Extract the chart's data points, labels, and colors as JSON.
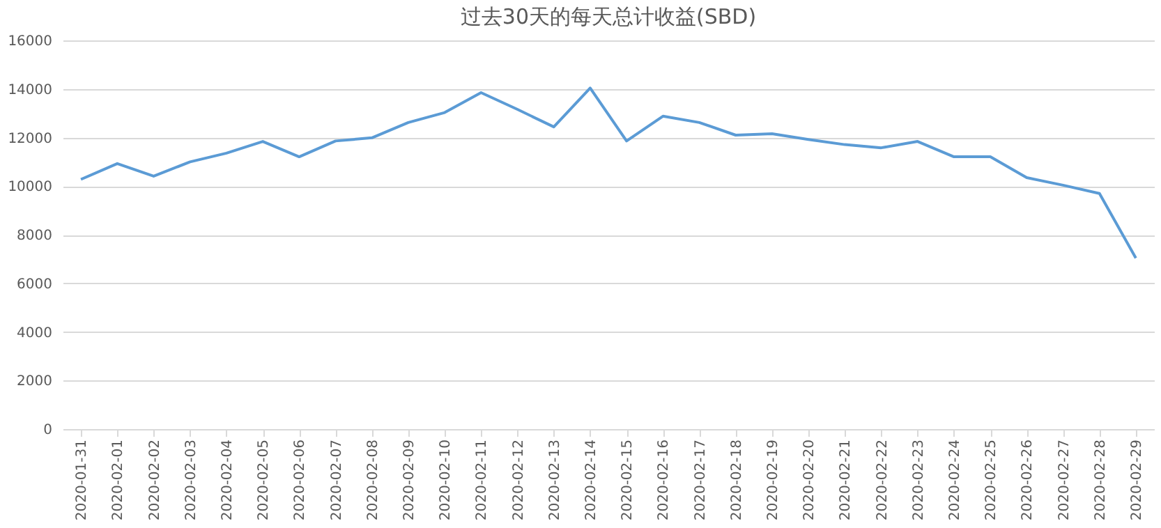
{
  "chart_data": {
    "type": "line",
    "title": "过去30天的每天总计收益(SBD)",
    "categories": [
      "2020-01-31",
      "2020-02-01",
      "2020-02-02",
      "2020-02-03",
      "2020-02-04",
      "2020-02-05",
      "2020-02-06",
      "2020-02-07",
      "2020-02-08",
      "2020-02-09",
      "2020-02-10",
      "2020-02-11",
      "2020-02-12",
      "2020-02-13",
      "2020-02-14",
      "2020-02-15",
      "2020-02-16",
      "2020-02-17",
      "2020-02-18",
      "2020-02-19",
      "2020-02-20",
      "2020-02-21",
      "2020-02-22",
      "2020-02-23",
      "2020-02-24",
      "2020-02-25",
      "2020-02-26",
      "2020-02-27",
      "2020-02-28",
      "2020-02-29"
    ],
    "series": [
      {
        "color": "#5b9bd5",
        "values": [
          10280,
          10930,
          10410,
          11000,
          11360,
          11840,
          11210,
          11860,
          11990,
          12620,
          13030,
          13850,
          13160,
          12440,
          14040,
          11860,
          12880,
          12620,
          12100,
          12160,
          11920,
          11710,
          11580,
          11840,
          11210,
          11210,
          10350,
          10040,
          9700,
          7040
        ]
      }
    ],
    "ylim": [
      0,
      16000
    ],
    "yticks": [
      0,
      2000,
      4000,
      6000,
      8000,
      10000,
      12000,
      14000,
      16000
    ],
    "grid": "y",
    "legend": false,
    "marker": "none",
    "line_style": "solid"
  }
}
